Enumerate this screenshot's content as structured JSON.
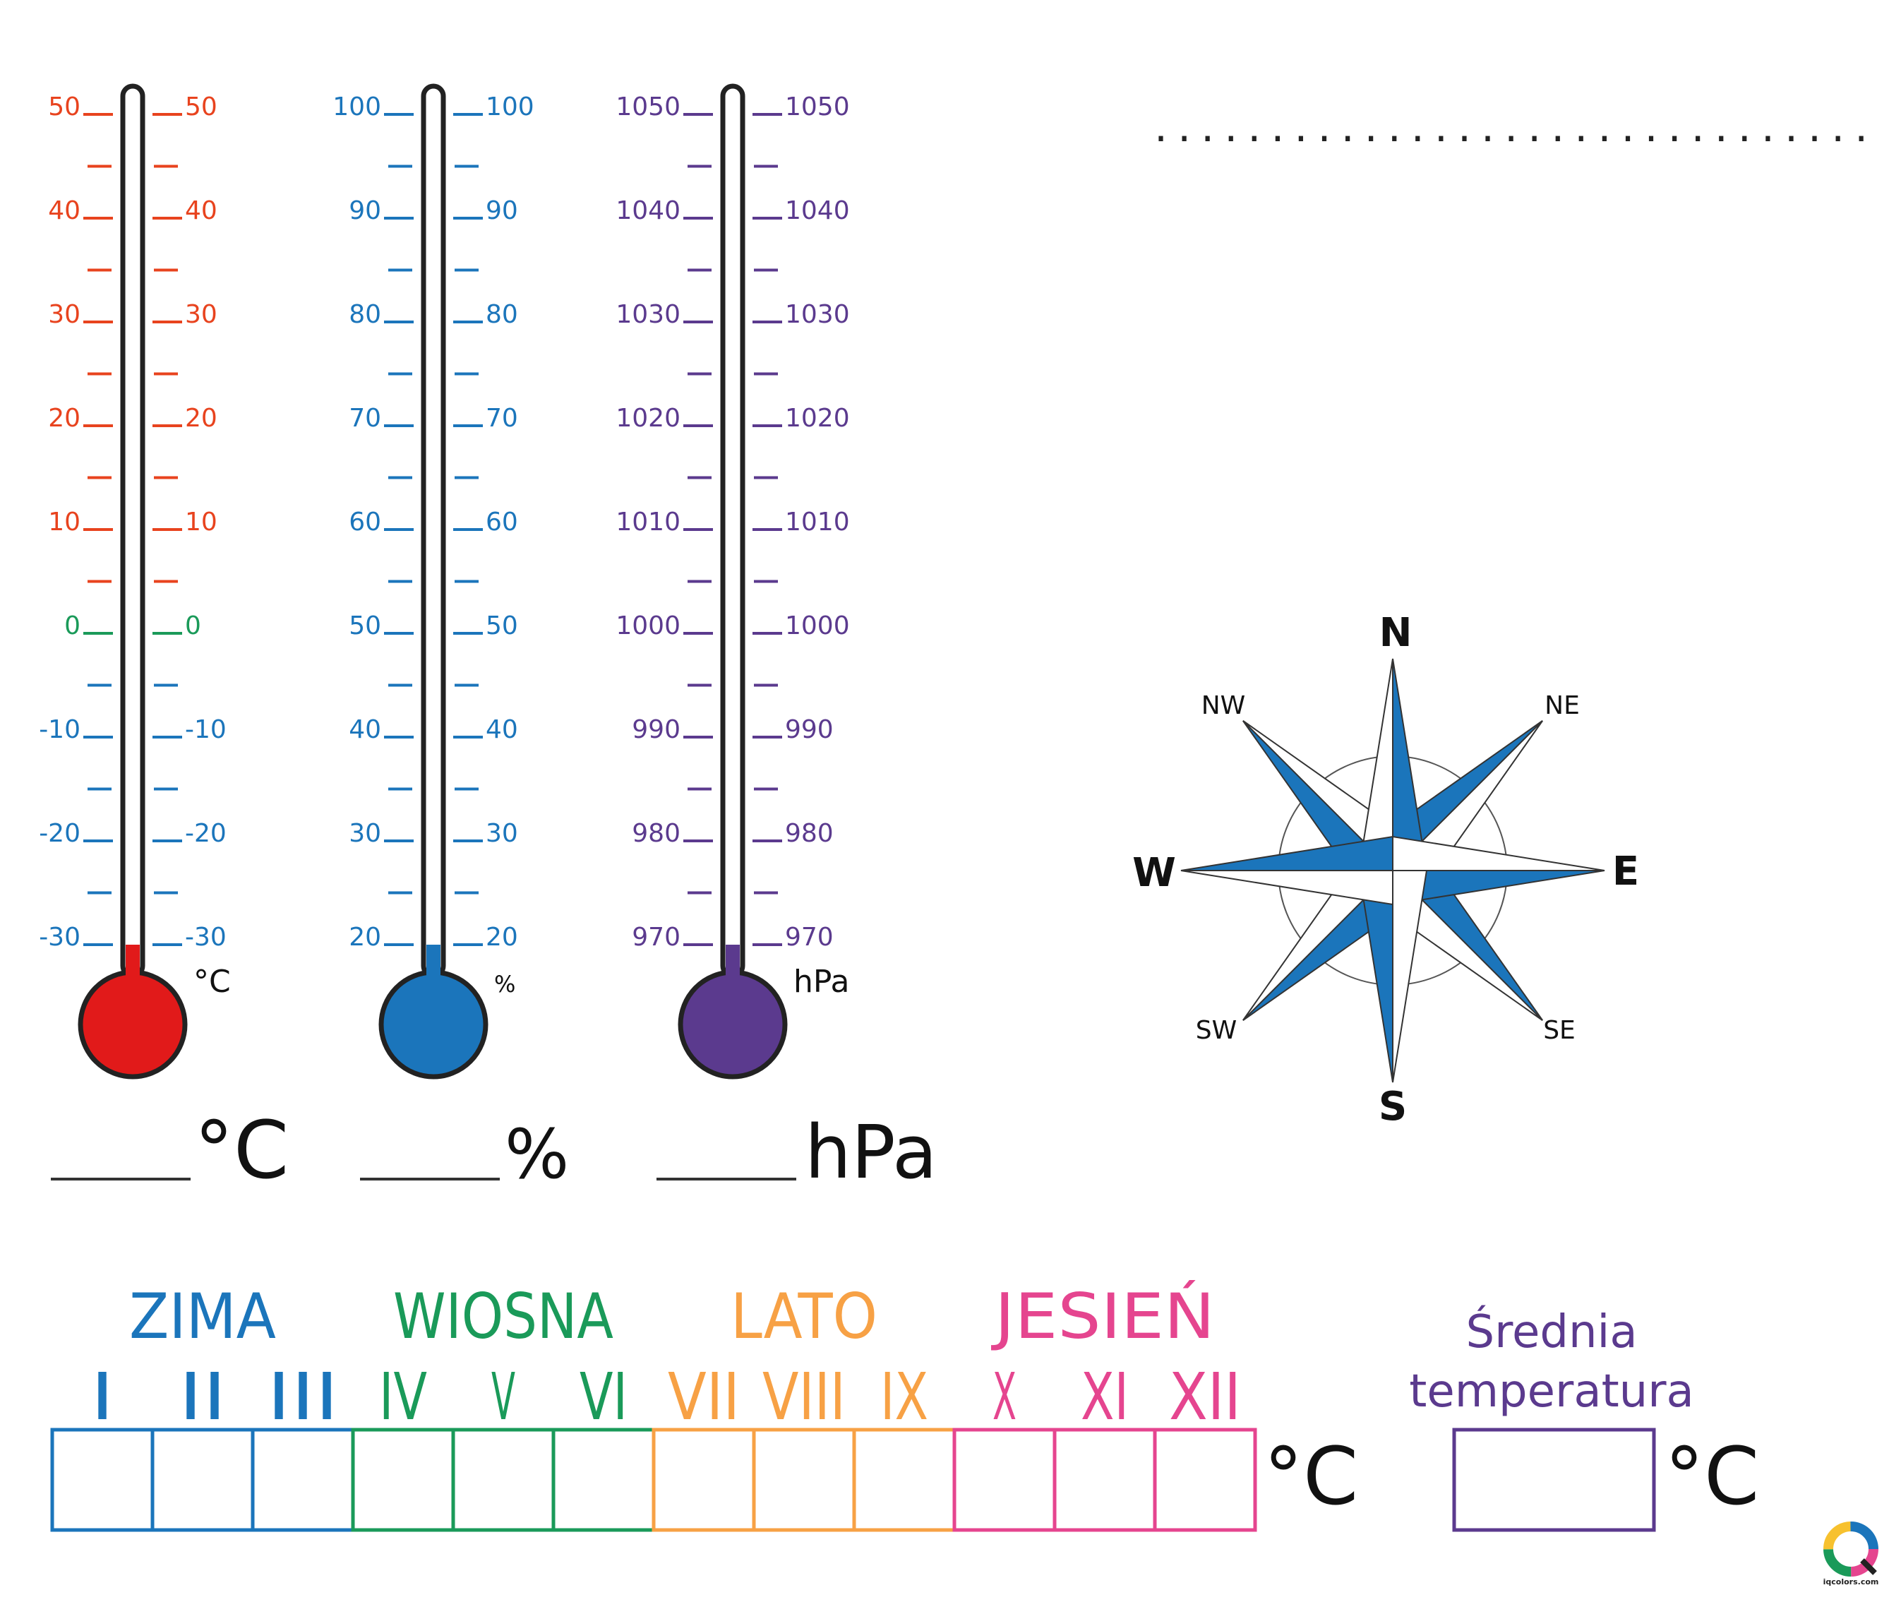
{
  "dotted_title_line": "...............................",
  "thermometers": [
    {
      "id": "temperature",
      "color": "#e8431e",
      "zero_color": "#1a9a59",
      "bulb_color": "#e11a1a",
      "unit_small": "°C",
      "unit_large": "°C",
      "labels": [
        "50",
        "40",
        "30",
        "20",
        "10",
        "0",
        "-10",
        "-20",
        "-30"
      ],
      "level_fraction": 0.0
    },
    {
      "id": "humidity",
      "color": "#1b75bb",
      "zero_color": "#1b75bb",
      "bulb_color": "#1b75bb",
      "unit_small": "%",
      "unit_large": "%",
      "labels": [
        "100",
        "90",
        "80",
        "70",
        "60",
        "50",
        "40",
        "30",
        "20"
      ],
      "level_fraction": 0.0
    },
    {
      "id": "pressure",
      "color": "#5b3a8e",
      "zero_color": "#5b3a8e",
      "bulb_color": "#5b3a8e",
      "unit_small": "hPa",
      "unit_large": "hPa",
      "labels": [
        "1050",
        "1040",
        "1030",
        "1020",
        "1010",
        "1000",
        "990",
        "980",
        "970"
      ],
      "level_fraction": 0.0
    }
  ],
  "compass": {
    "color": "#1b75bb",
    "directions": {
      "n": "N",
      "ne": "NE",
      "e": "E",
      "se": "SE",
      "s": "S",
      "sw": "SW",
      "w": "W",
      "nw": "NW"
    }
  },
  "seasons": [
    {
      "name": "ZIMA",
      "color": "#1b75bb",
      "months": [
        "I",
        "II",
        "III"
      ]
    },
    {
      "name": "WIOSNA",
      "color": "#1a9a59",
      "months": [
        "IV",
        "V",
        "VI"
      ]
    },
    {
      "name": "LATO",
      "color": "#f7a145",
      "months": [
        "VII",
        "VIII",
        "IX"
      ]
    },
    {
      "name": "JESIEŃ",
      "color": "#e5458f",
      "months": [
        "X",
        "XI",
        "XII"
      ]
    }
  ],
  "months_unit": "°C",
  "average": {
    "line1": "Średnia",
    "line2": "temperatura",
    "unit": "°C",
    "color": "#5b3a8e"
  },
  "watermark": "iqcolors.com"
}
